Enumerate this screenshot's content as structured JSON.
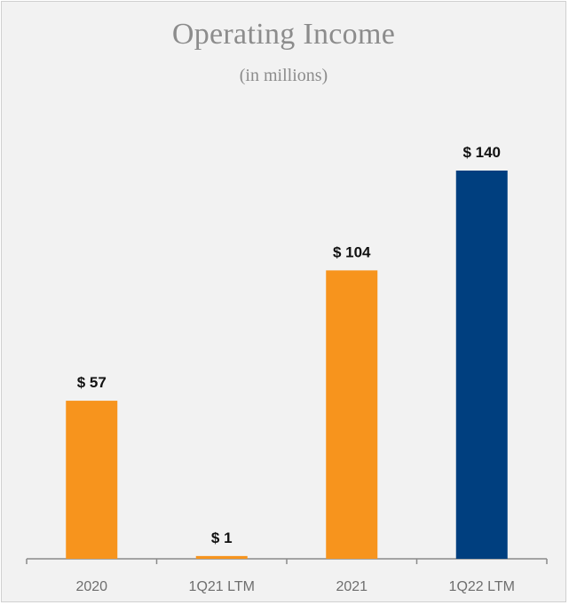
{
  "chart_data": {
    "type": "bar",
    "title": "Operating Income",
    "subtitle": "(in millions)",
    "categories": [
      "2020",
      "1Q21 LTM",
      "2021",
      "1Q22 LTM"
    ],
    "values": [
      57,
      1,
      104,
      140
    ],
    "data_labels": [
      "$ 57",
      "$ 1",
      "$ 104",
      "$ 140"
    ],
    "colors": [
      "#f7941d",
      "#f7941d",
      "#f7941d",
      "#003f7f"
    ],
    "xlabel": "",
    "ylabel": "",
    "ylim": [
      0,
      150
    ],
    "grid": false,
    "legend": "none"
  }
}
